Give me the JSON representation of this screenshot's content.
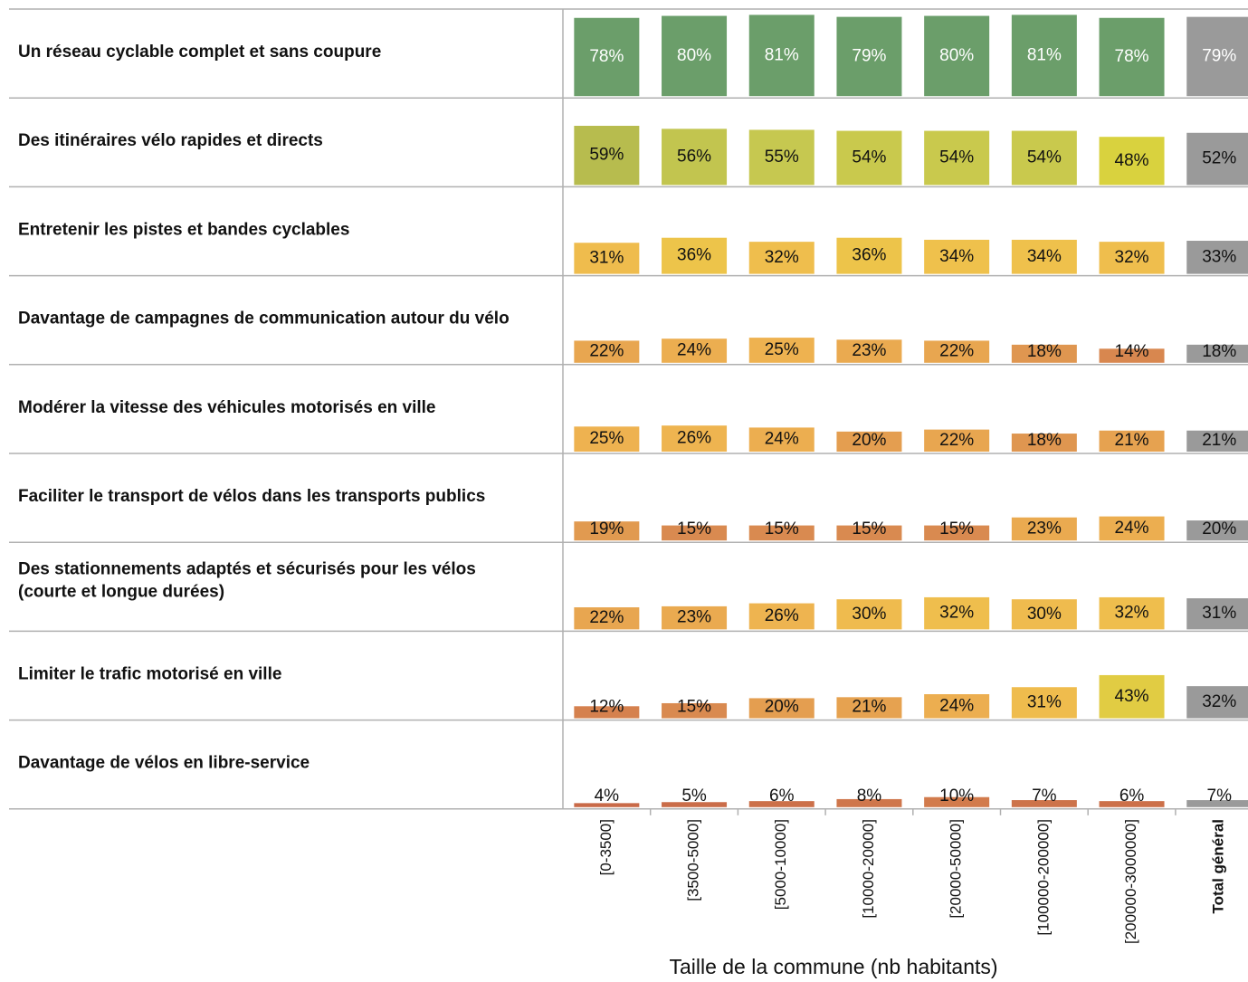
{
  "chart_data": {
    "type": "bar",
    "x_label": "Taille de la commune (nb habitants)",
    "categories": [
      "[0-3500]",
      "[3500-5000]",
      "[5000-10000]",
      "[10000-20000]",
      "[20000-50000]",
      "[100000-200000]",
      "[200000-3000000]",
      "Total général"
    ],
    "ylim": [
      0,
      85
    ],
    "rows": [
      {
        "label": [
          "Un réseau cyclable complet et sans coupure"
        ],
        "values": [
          78,
          80,
          81,
          79,
          80,
          81,
          78,
          79
        ],
        "value_labels": [
          "78%",
          "80%",
          "81%",
          "79%",
          "80%",
          "81%",
          "78%",
          "79%"
        ]
      },
      {
        "label": [
          "Des itinéraires vélo rapides et directs"
        ],
        "values": [
          59,
          56,
          55,
          54,
          54,
          54,
          48,
          52
        ],
        "value_labels": [
          "59%",
          "56%",
          "55%",
          "54%",
          "54%",
          "54%",
          "48%",
          "52%"
        ]
      },
      {
        "label": [
          "Entretenir les pistes et bandes cyclables"
        ],
        "values": [
          31,
          36,
          32,
          36,
          34,
          34,
          32,
          33
        ],
        "value_labels": [
          "31%",
          "36%",
          "32%",
          "36%",
          "34%",
          "34%",
          "32%",
          "33%"
        ]
      },
      {
        "label": [
          "Davantage de campagnes de communication autour du vélo"
        ],
        "values": [
          22,
          24,
          25,
          23,
          22,
          18,
          14,
          18
        ],
        "value_labels": [
          "22%",
          "24%",
          "25%",
          "23%",
          "22%",
          "18%",
          "14%",
          "18%"
        ]
      },
      {
        "label": [
          "Modérer la vitesse des véhicules motorisés en ville"
        ],
        "values": [
          25,
          26,
          24,
          20,
          22,
          18,
          21,
          21
        ],
        "value_labels": [
          "25%",
          "26%",
          "24%",
          "20%",
          "22%",
          "18%",
          "21%",
          "21%"
        ]
      },
      {
        "label": [
          "Faciliter le transport de vélos dans les transports publics"
        ],
        "values": [
          19,
          15,
          15,
          15,
          15,
          23,
          24,
          20
        ],
        "value_labels": [
          "19%",
          "15%",
          "15%",
          "15%",
          "15%",
          "23%",
          "24%",
          "20%"
        ]
      },
      {
        "label": [
          "Des stationnements adaptés et sécurisés pour les vélos",
          "(courte et longue durées)"
        ],
        "values": [
          22,
          23,
          26,
          30,
          32,
          30,
          32,
          31
        ],
        "value_labels": [
          "22%",
          "23%",
          "26%",
          "30%",
          "32%",
          "30%",
          "32%",
          "31%"
        ]
      },
      {
        "label": [
          "Limiter le trafic motorisé en ville"
        ],
        "values": [
          12,
          15,
          20,
          21,
          24,
          31,
          43,
          32
        ],
        "value_labels": [
          "12%",
          "15%",
          "20%",
          "21%",
          "24%",
          "31%",
          "43%",
          "32%"
        ]
      },
      {
        "label": [
          "Davantage de vélos en libre-service"
        ],
        "values": [
          4,
          5,
          6,
          8,
          10,
          7,
          6,
          7
        ],
        "value_labels": [
          "4%",
          "5%",
          "6%",
          "8%",
          "10%",
          "7%",
          "6%",
          "7%"
        ]
      }
    ]
  }
}
